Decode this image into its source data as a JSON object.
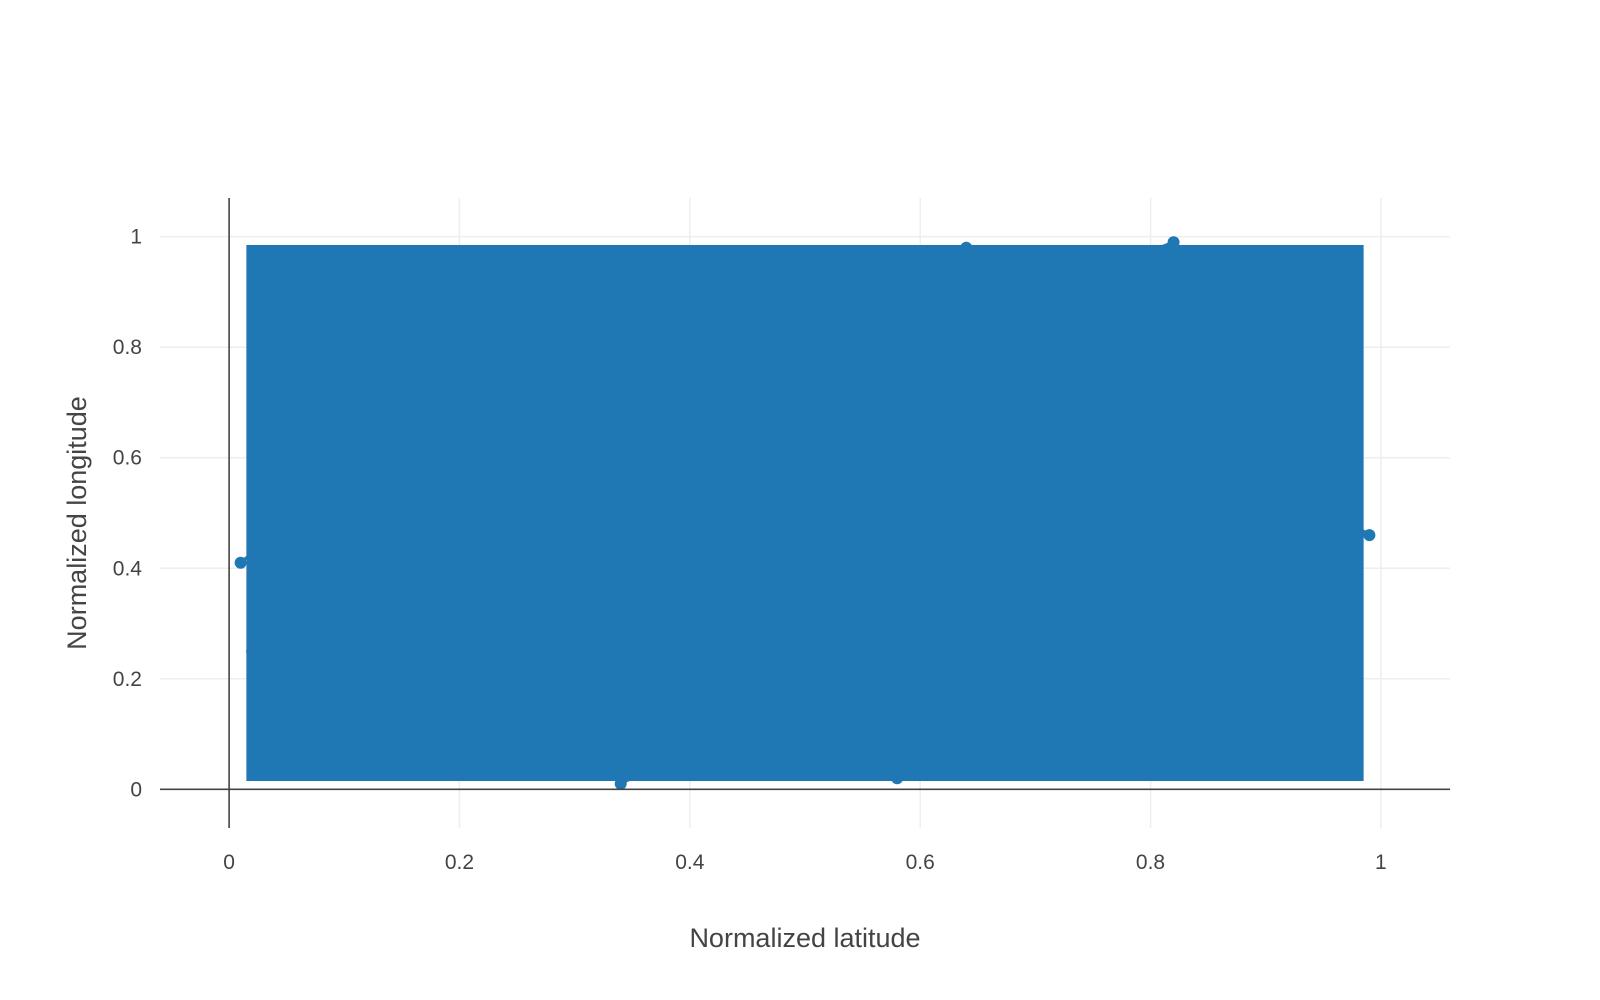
{
  "chart_data": {
    "type": "line",
    "mode": "lines+markers",
    "series_color": "#1f77b4",
    "grid_color": "#eeeeee",
    "axis_color": "#444444",
    "xlabel": "Normalized latitude",
    "ylabel": "Normalized longitude",
    "xlim": [
      -0.06,
      1.06
    ],
    "ylim": [
      -0.07,
      1.07
    ],
    "x_ticks": [
      0,
      0.2,
      0.4,
      0.6,
      0.8,
      1
    ],
    "x_tick_labels": [
      "0",
      "0.2",
      "0.4",
      "0.6",
      "0.8",
      "1"
    ],
    "y_ticks": [
      0,
      0.2,
      0.4,
      0.6,
      0.8,
      1
    ],
    "y_tick_labels": [
      "0",
      "0.2",
      "0.4",
      "0.6",
      "0.8",
      "1"
    ],
    "grid": true,
    "legend": "none",
    "series": [
      {
        "x": [
          0.01,
          0.32,
          0.71,
          0.95,
          0.58,
          0.12,
          0.44,
          0.87,
          0.23,
          0.66,
          0.99,
          0.05,
          0.38,
          0.82,
          0.19,
          0.52,
          0.91,
          0.27,
          0.74,
          0.03,
          0.48,
          0.85,
          0.15,
          0.61,
          0.97,
          0.34,
          0.69,
          0.08,
          0.55,
          0.93,
          0.21,
          0.77,
          0.41,
          0.02,
          0.64,
          0.89,
          0.29,
          0.51,
          0.96,
          0.11
        ],
        "y": [
          0.41,
          0.97,
          0.12,
          0.55,
          0.02,
          0.83,
          0.36,
          0.71,
          0.08,
          0.92,
          0.46,
          0.18,
          0.64,
          0.99,
          0.27,
          0.51,
          0.05,
          0.88,
          0.33,
          0.76,
          0.15,
          0.61,
          0.95,
          0.22,
          0.68,
          0.01,
          0.44,
          0.86,
          0.31,
          0.93,
          0.57,
          0.11,
          0.79,
          0.25,
          0.98,
          0.39,
          0.07,
          0.72,
          0.49,
          0.63
        ]
      }
    ]
  }
}
